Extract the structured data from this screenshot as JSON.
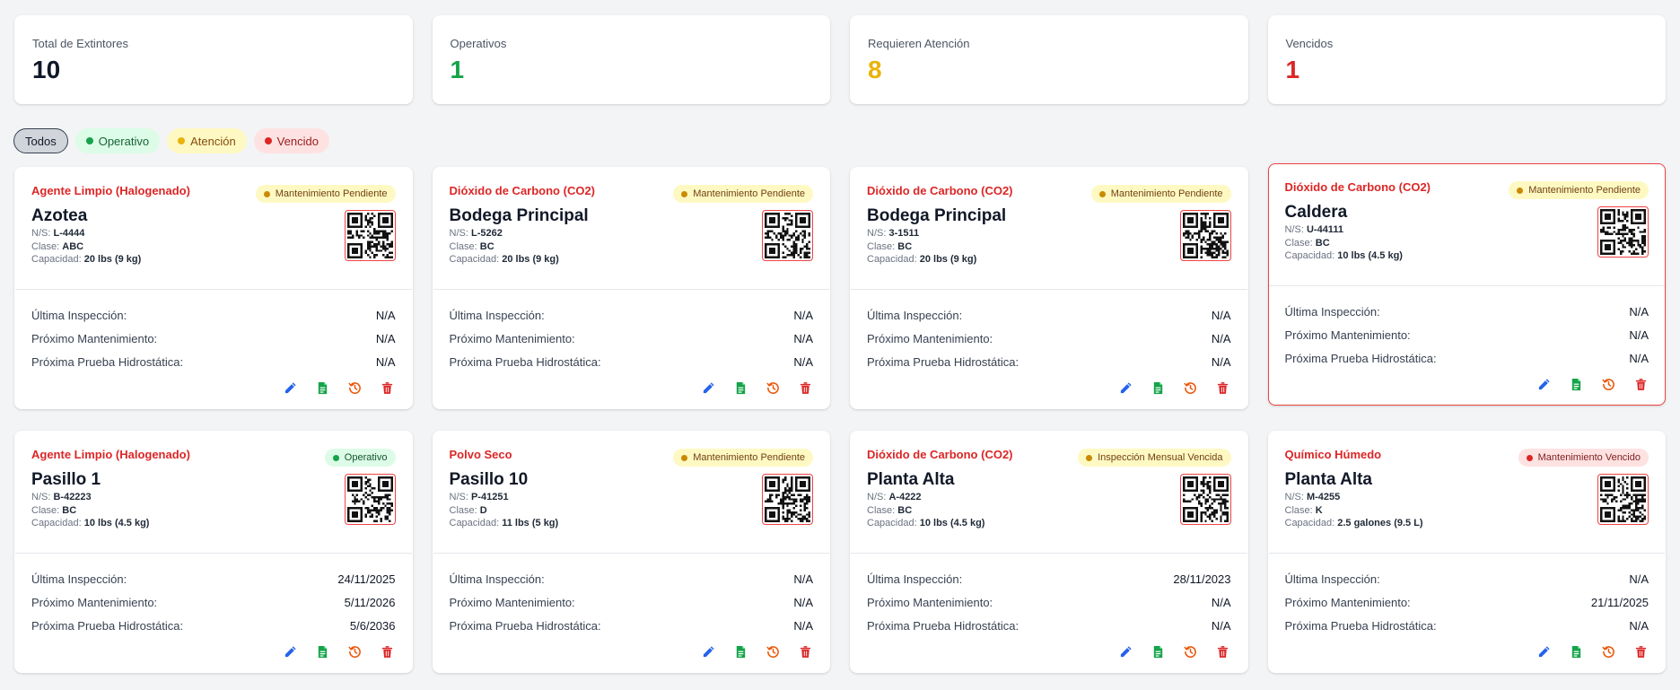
{
  "stats": [
    {
      "label": "Total de Extintores",
      "value": "10",
      "color": "#111827"
    },
    {
      "label": "Operativos",
      "value": "1",
      "color": "#16a34a"
    },
    {
      "label": "Requieren Atención",
      "value": "8",
      "color": "#eab308"
    },
    {
      "label": "Vencidos",
      "value": "1",
      "color": "#dc2626"
    }
  ],
  "filters": {
    "todos": "Todos",
    "operativo": "Operativo",
    "atencion": "Atención",
    "vencido": "Vencido"
  },
  "card_labels": {
    "ns": "N/S:",
    "clase": "Clase:",
    "capacidad": "Capacidad:",
    "ultima": "Última Inspección:",
    "proximo": "Próximo Mantenimiento:",
    "prueba": "Próxima Prueba Hidrostática:"
  },
  "icons": {
    "edit": "pencil-icon",
    "report": "document-icon",
    "history": "history-icon",
    "delete": "trash-icon",
    "qr": "qr-code-icon"
  },
  "colors": {
    "agent": "#dc2626",
    "edit": "#2563eb",
    "report": "#16a34a",
    "history": "#ea580c",
    "delete": "#dc2626"
  },
  "cards": [
    {
      "agent": "Agente Limpio (Halogenado)",
      "status": "Mantenimiento Pendiente",
      "status_color": "yellow",
      "location": "Azotea",
      "serial": "L-4444",
      "clase": "ABC",
      "capacidad": "20 lbs (9 kg)",
      "ultima": "N/A",
      "proximo": "N/A",
      "prueba": "N/A",
      "selected": false
    },
    {
      "agent": "Dióxido de Carbono (CO2)",
      "status": "Mantenimiento Pendiente",
      "status_color": "yellow",
      "location": "Bodega Principal",
      "serial": "L-5262",
      "clase": "BC",
      "capacidad": "20 lbs (9 kg)",
      "ultima": "N/A",
      "proximo": "N/A",
      "prueba": "N/A",
      "selected": false
    },
    {
      "agent": "Dióxido de Carbono (CO2)",
      "status": "Mantenimiento Pendiente",
      "status_color": "yellow",
      "location": "Bodega Principal",
      "serial": "3-1511",
      "clase": "BC",
      "capacidad": "20 lbs (9 kg)",
      "ultima": "N/A",
      "proximo": "N/A",
      "prueba": "N/A",
      "selected": false
    },
    {
      "agent": "Dióxido de Carbono (CO2)",
      "status": "Mantenimiento Pendiente",
      "status_color": "yellow",
      "location": "Caldera",
      "serial": "U-44111",
      "clase": "BC",
      "capacidad": "10 lbs (4.5 kg)",
      "ultima": "N/A",
      "proximo": "N/A",
      "prueba": "N/A",
      "selected": true
    },
    {
      "agent": "Agente Limpio (Halogenado)",
      "status": "Operativo",
      "status_color": "green",
      "location": "Pasillo 1",
      "serial": "B-42223",
      "clase": "BC",
      "capacidad": "10 lbs (4.5 kg)",
      "ultima": "24/11/2025",
      "proximo": "5/11/2026",
      "prueba": "5/6/2036",
      "selected": false
    },
    {
      "agent": "Polvo Seco",
      "status": "Mantenimiento Pendiente",
      "status_color": "yellow",
      "location": "Pasillo 10",
      "serial": "P-41251",
      "clase": "D",
      "capacidad": "11 lbs (5 kg)",
      "ultima": "N/A",
      "proximo": "N/A",
      "prueba": "N/A",
      "selected": false
    },
    {
      "agent": "Dióxido de Carbono (CO2)",
      "status": "Inspección Mensual Vencida",
      "status_color": "yellow",
      "location": "Planta Alta",
      "serial": "A-4222",
      "clase": "BC",
      "capacidad": "10 lbs (4.5 kg)",
      "ultima": "28/11/2023",
      "proximo": "N/A",
      "prueba": "N/A",
      "selected": false
    },
    {
      "agent": "Químico Húmedo",
      "status": "Mantenimiento Vencido",
      "status_color": "red",
      "location": "Planta Alta",
      "serial": "M-4255",
      "clase": "K",
      "capacidad": "2.5 galones (9.5 L)",
      "ultima": "N/A",
      "proximo": "21/11/2025",
      "prueba": "N/A",
      "selected": false
    }
  ]
}
